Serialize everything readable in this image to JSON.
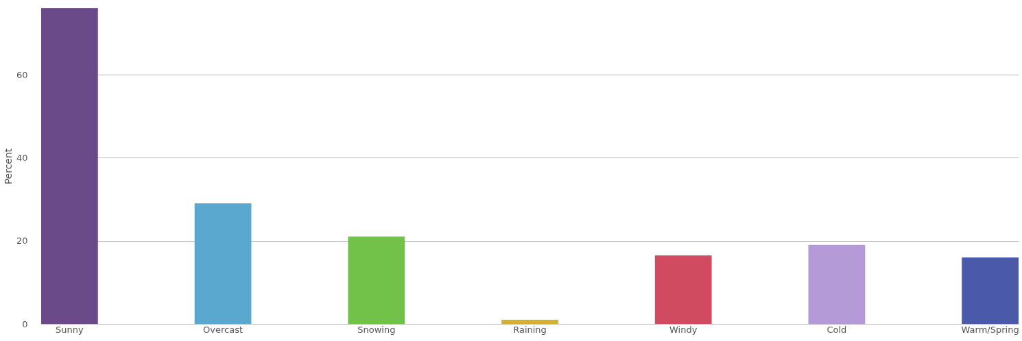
{
  "chart_data": {
    "type": "bar",
    "ylabel": "Percent",
    "categories": [
      "Sunny",
      "Overcast",
      "Snowing",
      "Raining",
      "Windy",
      "Cold",
      "Warm/Spring"
    ],
    "values": [
      76,
      29,
      21,
      1,
      16.5,
      19,
      16
    ],
    "colors": [
      "#6b4a8a",
      "#5aa8d0",
      "#72c24a",
      "#d4b030",
      "#d04a60",
      "#b39ad6",
      "#4a5aa8"
    ],
    "ylim": [
      0,
      76
    ],
    "yticks": [
      0,
      20,
      40,
      60
    ],
    "grid": "y",
    "legend": false
  }
}
